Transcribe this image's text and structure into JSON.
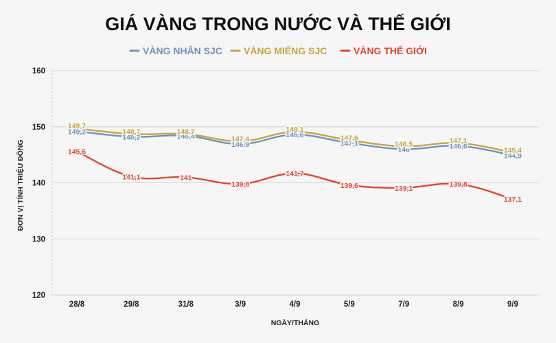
{
  "chart_data": {
    "type": "line",
    "title": "GIÁ VÀNG TRONG NƯỚC VÀ THẾ GIỚI",
    "xlabel": "NGÀY/THÁNG",
    "ylabel": "ĐƠN VỊ TÍNH TRIỆU ĐỒNG",
    "categories": [
      "28/8",
      "29/8",
      "31/8",
      "3/9",
      "4/9",
      "5/9",
      "7/9",
      "8/9",
      "9/9"
    ],
    "ylim": [
      120,
      160
    ],
    "yticks": [
      "120",
      "130",
      "140",
      "150",
      "160"
    ],
    "grid": true,
    "legend_position": "top",
    "series": [
      {
        "name": "VÀNG NHẪN SJC",
        "color": "#6f93c0",
        "values": [
          149.2,
          148.2,
          148.4,
          146.9,
          148.6,
          147.1,
          146.0,
          146.6,
          144.9
        ],
        "labels": [
          "149,2",
          "148,2",
          "148,4",
          "146,9",
          "148,6",
          "147,1",
          "146",
          "146,6",
          "144,9"
        ]
      },
      {
        "name": "VÀNG MIẾNG SJC",
        "color": "#c9a53a",
        "values": [
          149.7,
          148.7,
          148.7,
          147.4,
          149.1,
          147.6,
          146.5,
          147.1,
          145.4
        ],
        "labels": [
          "149,7",
          "148,7",
          "148,7",
          "147,4",
          "149,1",
          "147,6",
          "146,5",
          "147,1",
          "145,4"
        ]
      },
      {
        "name": "VÀNG THẾ GIỚI",
        "color": "#e8432a",
        "values": [
          145.6,
          141.1,
          141.0,
          139.8,
          141.7,
          139.6,
          139.1,
          139.8,
          137.1
        ],
        "labels": [
          "145,6",
          "141,1",
          "141",
          "139,8",
          "141,7",
          "139,6",
          "139,1",
          "139,8",
          "137,1"
        ]
      }
    ]
  }
}
